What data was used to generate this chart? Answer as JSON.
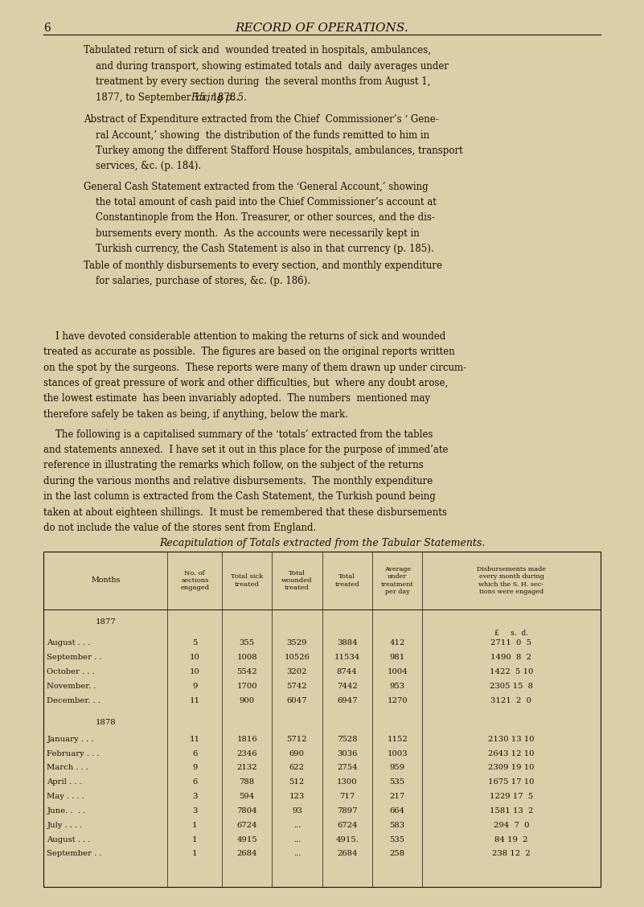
{
  "bg_color": "#d9cfa8",
  "text_color": "#1a1008",
  "page_number": "6",
  "page_title": "RECORD OF OPERATIONS.",
  "table_title": "Recapitulation of Totals extracted from the Tabular Statements.",
  "col_headers": [
    "Months",
    "No. of\nsections\nengaged",
    "Total sick\ntreated",
    "Total\nwounded\ntreated",
    "Total\ntreated",
    "Average\nunder\ntreatment\nper day",
    "Disbursements made\nevery month during\nwhich the S. H. sec-\ntions were engaged"
  ],
  "rows_1877": [
    [
      "August . . .",
      "5",
      "355",
      "3529",
      "3884",
      "412",
      "2711  0  5"
    ],
    [
      "September . .",
      "10",
      "1008",
      "10526",
      "11534",
      "981",
      "1490  8  2"
    ],
    [
      "October . . .",
      "10",
      "5542",
      "3202",
      "8744",
      "1004",
      "1422  5 10"
    ],
    [
      "November. . ",
      "9",
      "1700",
      "5742",
      "7442",
      "953",
      "2305 15  8"
    ],
    [
      "December. . .",
      "11",
      "900",
      "6047",
      "6947",
      "1270",
      "3121  2  0"
    ]
  ],
  "rows_1878": [
    [
      "January . . .",
      "11",
      "1816",
      "5712",
      "7528",
      "1152",
      "2130 13 10"
    ],
    [
      "February . . .",
      "6",
      "2346",
      "690",
      "3036",
      "1003",
      "2643 12 10"
    ],
    [
      "March . . .",
      "9",
      "2132",
      "622",
      "2754",
      "959",
      "2309 19 10"
    ],
    [
      "April . . .",
      "6",
      "788",
      "512",
      "1300",
      "535",
      "1675 17 10"
    ],
    [
      "May . . . .",
      "3",
      "594",
      "123",
      "717",
      "217",
      "1229 17  5"
    ],
    [
      "June. .  . .",
      "3",
      "7804",
      "93",
      "7897",
      "664",
      "1581 13  2"
    ],
    [
      "July . . . .",
      "1",
      "6724",
      "...",
      "6724",
      "583",
      "294  7  0"
    ],
    [
      "August . . .",
      "1",
      "4915",
      "...",
      "4915.",
      "535",
      "84 19  2"
    ],
    [
      "September . .",
      "1",
      "2684",
      "...",
      "2684",
      "258",
      "238 12  2"
    ]
  ]
}
